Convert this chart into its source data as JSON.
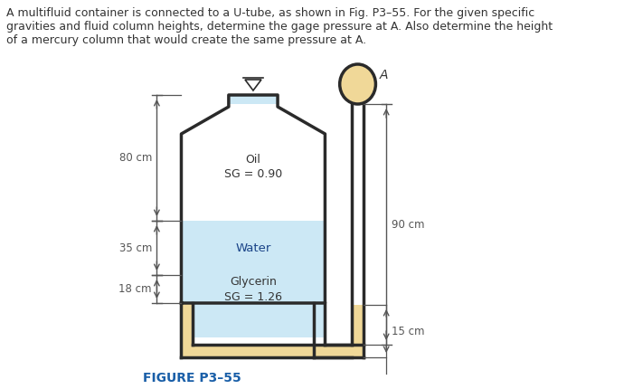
{
  "title_text": "A multifluid container is connected to a U-tube, as shown in Fig. P3–55. For the given specific\ngravities and fluid column heights, determine the gage pressure at A. Also determine the height\nof a mercury column that would create the same pressure at A.",
  "figure_label": "FIGURE P3–55",
  "oil_label": "Oil\nSG = 0.90",
  "water_label": "Water",
  "glycerin_label": "Glycerin\nSG = 1.26",
  "label_A": "A",
  "dim_80": "80 cm",
  "dim_35": "35 cm",
  "dim_18": "18 cm",
  "dim_90": "90 cm",
  "dim_15": "15 cm",
  "color_oil": "#cce8f5",
  "color_water": "#70bce0",
  "color_glycerin": "#f5dfa0",
  "color_tube_fill": "#f0d898",
  "color_border": "#2a2a2a",
  "color_figure_label": "#1a5fa8",
  "color_background": "#ffffff",
  "color_text": "#333333",
  "color_dimline": "#555555"
}
